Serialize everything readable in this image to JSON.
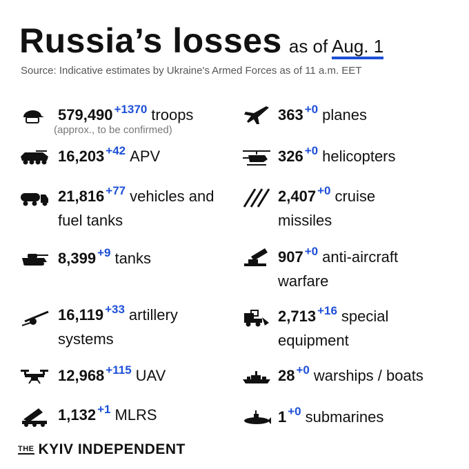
{
  "header": {
    "title": "Russia’s losses",
    "as_of_prefix": "as of",
    "as_of_date": "Aug. 1",
    "source": "Source: Indicative estimates by Ukraine's Armed Forces as of 11 a.m. EET"
  },
  "items": {
    "troops": {
      "value": "579,490",
      "delta": "+1370",
      "label": "troops",
      "note": "(approx., to be confirmed)",
      "icon": "soldier-helmet-icon"
    },
    "apv": {
      "value": "16,203",
      "delta": "+42",
      "label": "APV",
      "icon": "armored-vehicle-icon"
    },
    "vehicles": {
      "value": "21,816",
      "delta": "+77",
      "label": "vehicles and",
      "label2": "fuel tanks",
      "icon": "fuel-truck-icon"
    },
    "tanks": {
      "value": "8,399",
      "delta": "+9",
      "label": "tanks",
      "icon": "tank-icon"
    },
    "artillery": {
      "value": "16,119",
      "delta": "+33",
      "label": "artillery",
      "label2": "systems",
      "icon": "artillery-icon"
    },
    "uav": {
      "value": "12,968",
      "delta": "+115",
      "label": "UAV",
      "icon": "drone-icon"
    },
    "mlrs": {
      "value": "1,132",
      "delta": "+1",
      "label": "MLRS",
      "icon": "rocket-launcher-icon"
    },
    "planes": {
      "value": "363",
      "delta": "+0",
      "label": "planes",
      "icon": "jet-icon"
    },
    "helicopters": {
      "value": "326",
      "delta": "+0",
      "label": "helicopters",
      "icon": "helicopter-icon"
    },
    "cruise": {
      "value": "2,407",
      "delta": "+0",
      "label": "cruise",
      "label2": "missiles",
      "icon": "missiles-icon"
    },
    "antiair": {
      "value": "907",
      "delta": "+0",
      "label": "anti-aircraft",
      "label2": "warfare",
      "icon": "anti-aircraft-icon"
    },
    "special": {
      "value": "2,713",
      "delta": "+16",
      "label": "special",
      "label2": "equipment",
      "icon": "special-equipment-icon"
    },
    "warships": {
      "value": "28",
      "delta": "+0",
      "label": "warships / boats",
      "icon": "warship-icon"
    },
    "submarines": {
      "value": "1",
      "delta": "+0",
      "label": "submarines",
      "icon": "submarine-icon"
    }
  },
  "footer": {
    "logo_the": "THE",
    "logo_name": "KYIV INDEPENDENT"
  },
  "colors": {
    "accent": "#1d4fd8",
    "text": "#111111",
    "muted": "#555555"
  }
}
